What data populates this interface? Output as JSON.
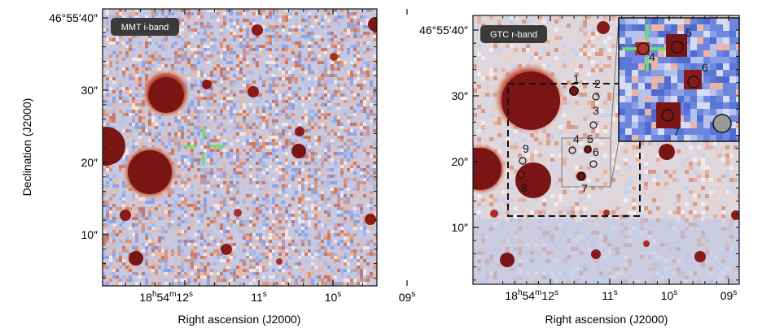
{
  "colors": {
    "sky_blue": "#8fa6e0",
    "sky_light": "#e9e3e6",
    "source_dark_red": "#7a1515",
    "halo_orange": "#dc8a6e",
    "crosshair_green": "#6ee06a",
    "badge_bg": "#3a3a3a",
    "badge_text": "#ffffff",
    "marker": "#111111"
  },
  "left_panel": {
    "band_label": "MMT i-band",
    "xlabel": "Right ascension (J2000)",
    "ylabel": "Declination (J2000)",
    "y_ticks": [
      {
        "sec": 40,
        "label": "46°55′40″"
      },
      {
        "sec": 30,
        "label": "30″"
      },
      {
        "sec": 20,
        "label": "20″"
      },
      {
        "sec": 10,
        "label": "10″"
      }
    ],
    "x_ticks": [
      {
        "sec": 12,
        "label_main": "18",
        "h": "h",
        "m_val": "54",
        "m": "m",
        "s_val": "12",
        "s": "s"
      },
      {
        "sec": 11,
        "label_main": "11",
        "s": "s"
      },
      {
        "sec": 10,
        "label_main": "10",
        "s": "s"
      },
      {
        "sec": 9,
        "label_main": "09",
        "s": "s"
      }
    ]
  },
  "right_panel": {
    "band_label": "GTC r-band",
    "xlabel": "Right ascension (J2000)",
    "y_ticks": [
      {
        "sec": 40,
        "label": "46°55′40″"
      },
      {
        "sec": 30,
        "label": "30″"
      },
      {
        "sec": 20,
        "label": "20″"
      },
      {
        "sec": 10,
        "label": "10″"
      }
    ],
    "x_ticks": [
      {
        "sec": 12,
        "label_main": "18",
        "h": "h",
        "m_val": "54",
        "m": "m",
        "s_val": "12",
        "s": "s"
      },
      {
        "sec": 11,
        "label_main": "11",
        "s": "s"
      },
      {
        "sec": 10,
        "label_main": "10",
        "s": "s"
      },
      {
        "sec": 9,
        "label_main": "09",
        "s": "s"
      }
    ],
    "sources": [
      {
        "id": "1",
        "label": "1"
      },
      {
        "id": "2",
        "label": "2"
      },
      {
        "id": "3",
        "label": "3"
      },
      {
        "id": "4",
        "label": "4"
      },
      {
        "id": "5",
        "label": "5"
      },
      {
        "id": "6",
        "label": "6"
      },
      {
        "id": "7",
        "label": "7"
      },
      {
        "id": "8",
        "label": "8"
      },
      {
        "id": "9",
        "label": "9"
      }
    ],
    "inset_sources": [
      {
        "id": "4",
        "label": "4"
      },
      {
        "id": "5",
        "label": "5"
      },
      {
        "id": "6",
        "label": "6"
      },
      {
        "id": "7",
        "label": "7"
      }
    ]
  }
}
